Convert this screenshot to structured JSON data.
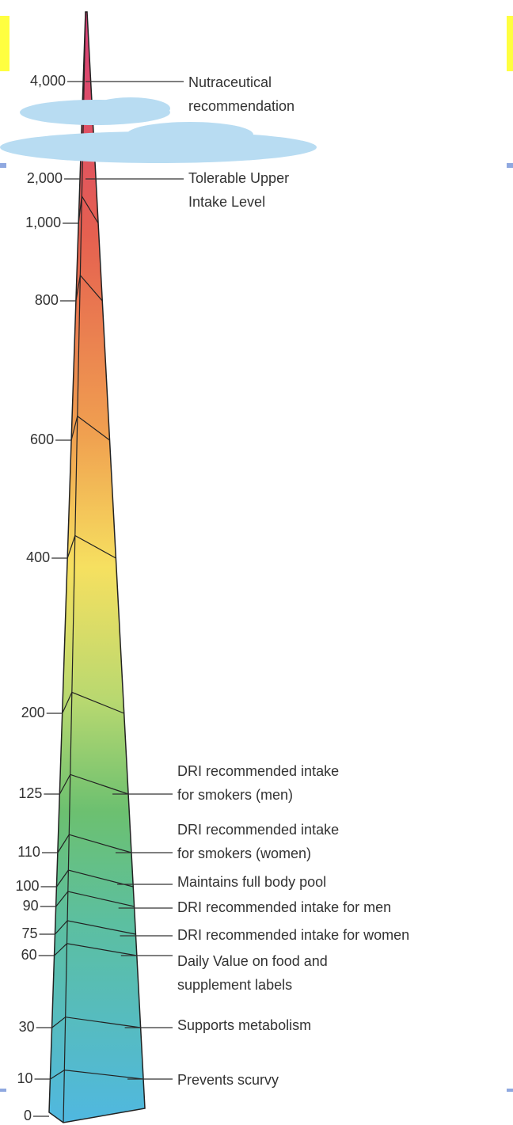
{
  "axis_labels": [
    "4,000",
    "2,000",
    "1,000",
    "800",
    "600",
    "400",
    "200",
    "125",
    "110",
    "100",
    "90",
    "75",
    "60",
    "30",
    "10",
    "0"
  ],
  "annotations": [
    {
      "lines": [
        "Nutraceutical",
        "recommendation"
      ]
    },
    {
      "lines": [
        "Tolerable Upper",
        "Intake Level"
      ]
    },
    {
      "lines": [
        "DRI recommended intake",
        "for smokers (men)"
      ]
    },
    {
      "lines": [
        "DRI recommended intake",
        "for smokers (women)"
      ]
    },
    {
      "lines": [
        "Maintains full body pool"
      ]
    },
    {
      "lines": [
        "DRI recommended intake for men"
      ]
    },
    {
      "lines": [
        "DRI recommended intake for women"
      ]
    },
    {
      "lines": [
        "Daily Value on food and",
        "supplement labels"
      ]
    },
    {
      "lines": [
        "Supports metabolism"
      ]
    },
    {
      "lines": [
        "Prevents scurvy"
      ]
    }
  ]
}
